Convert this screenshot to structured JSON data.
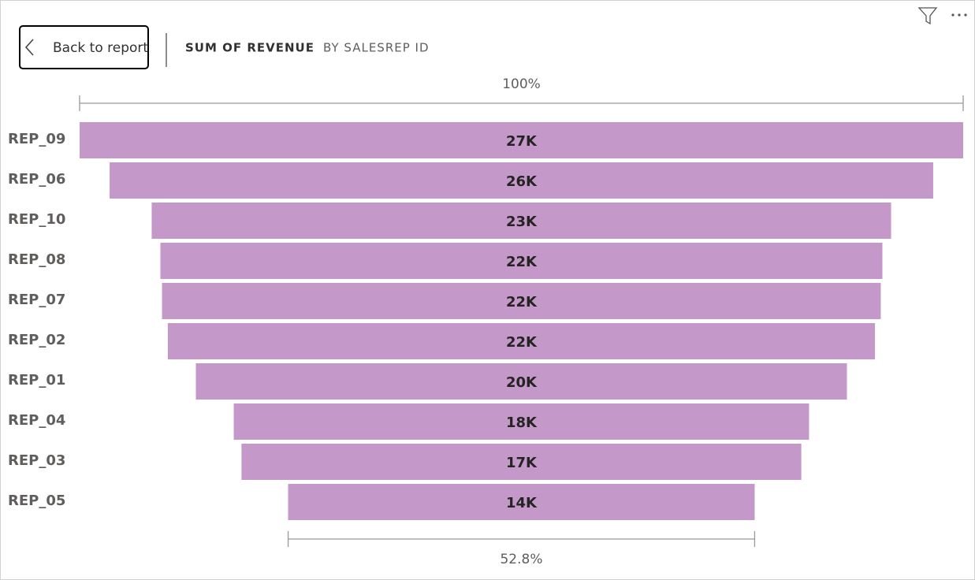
{
  "ui": {
    "back_button": "Back to report"
  },
  "chart_data": {
    "type": "funnel",
    "title": "SUM OF REVENUE",
    "subtitle": "BY SALESREP ID",
    "categories": [
      "REP_09",
      "REP_06",
      "REP_10",
      "REP_08",
      "REP_07",
      "REP_02",
      "REP_01",
      "REP_04",
      "REP_03",
      "REP_05"
    ],
    "values": [
      27400,
      25540,
      22930,
      22390,
      22290,
      21930,
      20190,
      17840,
      17360,
      14470
    ],
    "value_labels": [
      "27K",
      "26K",
      "23K",
      "22K",
      "22K",
      "22K",
      "20K",
      "18K",
      "17K",
      "14K"
    ],
    "color": "#c499c9",
    "top_measure": {
      "value": 100,
      "label": "100%"
    },
    "bottom_measure": {
      "value": 52.8,
      "label": "52.8%"
    }
  }
}
